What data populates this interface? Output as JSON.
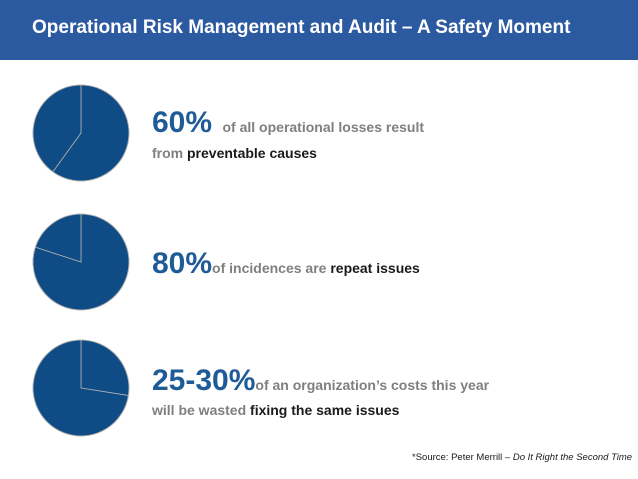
{
  "header": {
    "title": "Operational Risk Management and Audit – A Safety Moment"
  },
  "colors": {
    "header_bg": "#2c5aa0",
    "pie_fill": "#0f4c85",
    "pie_stroke": "#b0b0b0",
    "big_text": "#1f5b96",
    "gray_text": "#7f7f7f"
  },
  "chart_data": [
    {
      "type": "pie",
      "values": [
        60,
        40
      ],
      "highlight_slice": 0
    },
    {
      "type": "pie",
      "values": [
        80,
        20
      ],
      "highlight_slice": 0
    },
    {
      "type": "pie",
      "values": [
        27.5,
        72.5
      ],
      "highlight_slice": 1
    }
  ],
  "stats": [
    {
      "big": "60%",
      "text1": "of all operational losses result",
      "line2_pre": "from ",
      "line2_em": "preventable causes"
    },
    {
      "big": "80%",
      "text_pre": "of incidences are ",
      "text_em": "repeat issues"
    },
    {
      "big": "25-30%",
      "text1": "of an organization’s costs this year",
      "line2_pre": "will be wasted ",
      "line2_em": "fixing the same issues"
    }
  ],
  "source": {
    "prefix": "*Source: Peter Merrill – ",
    "italic": "Do It Right the Second Time"
  }
}
